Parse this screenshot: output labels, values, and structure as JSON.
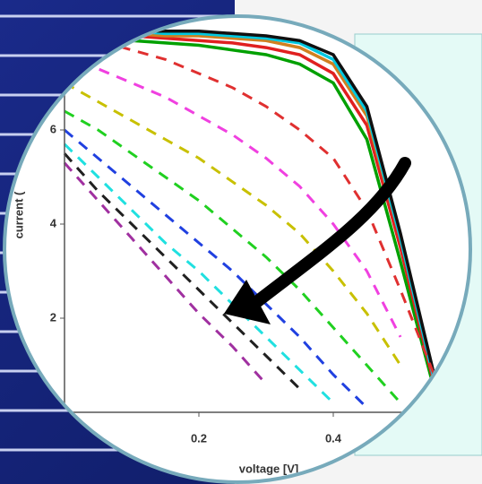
{
  "chart_data": {
    "type": "line",
    "x_label": "voltage [V]",
    "y_label": "current (",
    "x": [
      0,
      0.05,
      0.1,
      0.15,
      0.2,
      0.25,
      0.3,
      0.35,
      0.4,
      0.45,
      0.5,
      0.55
    ],
    "xlim": [
      0,
      0.6
    ],
    "ylim": [
      0,
      8.2
    ],
    "xticks": [
      0.2,
      0.4
    ],
    "yticks": [
      2,
      4,
      6
    ],
    "series": [
      {
        "color": "#00a000",
        "style": "solid",
        "values": [
          7.9,
          7.9,
          7.9,
          7.85,
          7.8,
          7.7,
          7.6,
          7.4,
          7.0,
          5.8,
          3.2,
          0.5
        ]
      },
      {
        "color": "#e02020",
        "style": "solid",
        "values": [
          8.0,
          8.0,
          8.0,
          7.95,
          7.9,
          7.85,
          7.75,
          7.6,
          7.2,
          6.1,
          3.5,
          0.6
        ]
      },
      {
        "color": "#d08020",
        "style": "solid",
        "values": [
          8.05,
          8.05,
          8.05,
          8.0,
          8.0,
          7.95,
          7.9,
          7.75,
          7.4,
          6.3,
          3.7,
          0.7
        ]
      },
      {
        "color": "#00c8e0",
        "style": "solid",
        "values": [
          8.1,
          8.1,
          8.1,
          8.05,
          8.05,
          8.0,
          7.95,
          7.85,
          7.5,
          6.4,
          3.7,
          0.7
        ]
      },
      {
        "color": "#101010",
        "style": "solid",
        "values": [
          8.1,
          8.1,
          8.1,
          8.1,
          8.1,
          8.05,
          8.0,
          7.9,
          7.6,
          6.5,
          3.8,
          0.8
        ]
      },
      {
        "color": "#e03030",
        "style": "dashed",
        "values": [
          8.0,
          7.9,
          7.7,
          7.5,
          7.2,
          6.9,
          6.5,
          6.0,
          5.4,
          4.3,
          2.6,
          0.8
        ]
      },
      {
        "color": "#f040e0",
        "style": "dashed",
        "values": [
          7.6,
          7.3,
          7.0,
          6.7,
          6.3,
          5.9,
          5.4,
          4.8,
          4.0,
          3.0,
          1.6,
          null
        ]
      },
      {
        "color": "#c8c000",
        "style": "dashed",
        "values": [
          7.0,
          6.6,
          6.2,
          5.8,
          5.4,
          4.9,
          4.4,
          3.8,
          3.0,
          2.1,
          1.0,
          null
        ]
      },
      {
        "color": "#20d020",
        "style": "dashed",
        "values": [
          6.4,
          6.0,
          5.5,
          5.0,
          4.5,
          3.9,
          3.3,
          2.6,
          1.8,
          1.0,
          0.2,
          null
        ]
      },
      {
        "color": "#2040e0",
        "style": "dashed",
        "values": [
          6.0,
          5.4,
          4.8,
          4.2,
          3.6,
          3.0,
          2.3,
          1.6,
          0.8,
          0.1,
          null,
          null
        ]
      },
      {
        "color": "#20e0e0",
        "style": "dashed",
        "values": [
          5.7,
          5.0,
          4.3,
          3.6,
          3.0,
          2.3,
          1.6,
          0.9,
          0.2,
          null,
          null,
          null
        ]
      },
      {
        "color": "#202020",
        "style": "dashed",
        "values": [
          5.5,
          4.7,
          4.0,
          3.3,
          2.6,
          1.9,
          1.2,
          0.5,
          null,
          null,
          null,
          null
        ]
      },
      {
        "color": "#a030a0",
        "style": "dashed",
        "values": [
          5.3,
          4.5,
          3.7,
          2.9,
          2.1,
          1.4,
          0.6,
          null,
          null,
          null,
          null,
          null
        ]
      }
    ]
  }
}
